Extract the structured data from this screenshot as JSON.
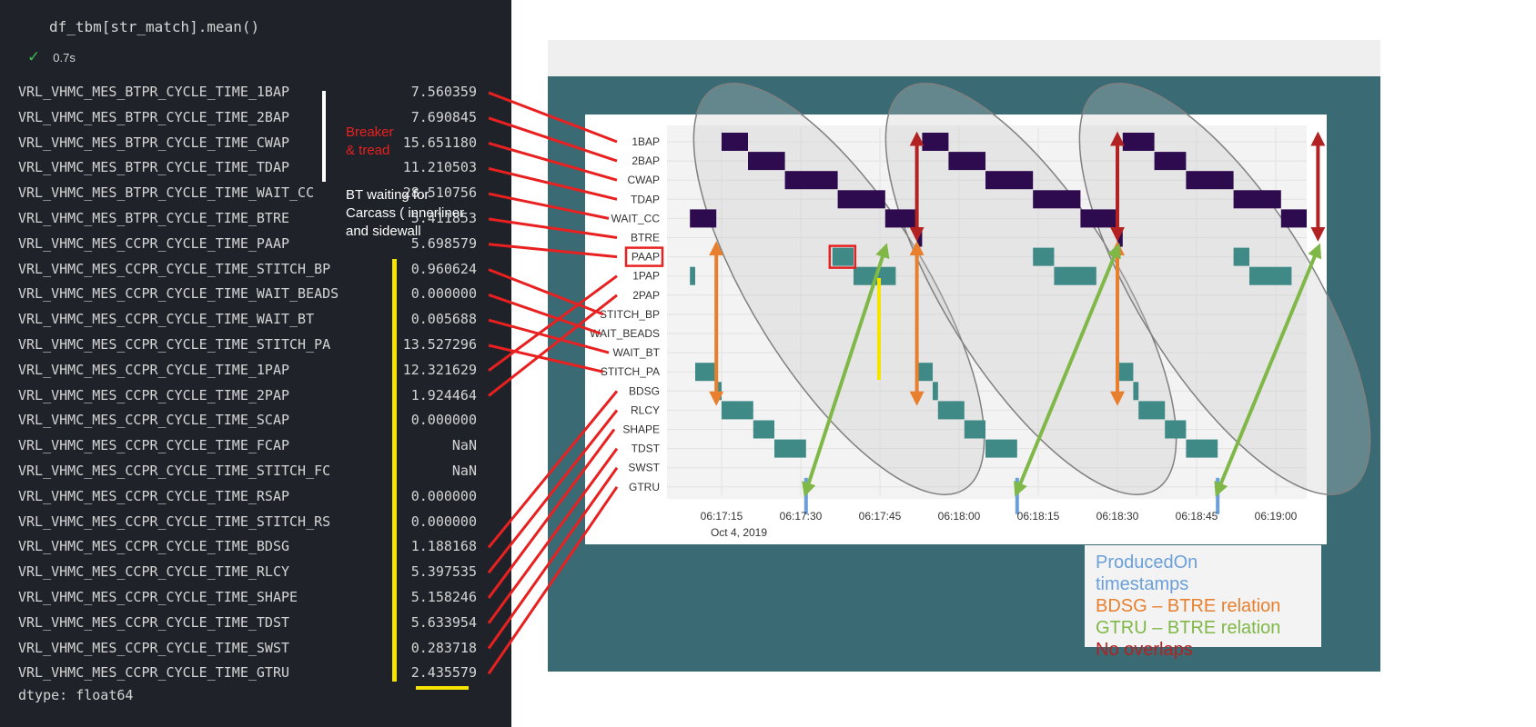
{
  "notebook": {
    "code": "df_tbm[str_match].mean()",
    "exec_time": "0.7s",
    "dtype": "dtype: float64",
    "rows": [
      {
        "name": "VRL_VHMC_MES_BTPR_CYCLE_TIME_1BAP",
        "value": "7.560359"
      },
      {
        "name": "VRL_VHMC_MES_BTPR_CYCLE_TIME_2BAP",
        "value": "7.690845"
      },
      {
        "name": "VRL_VHMC_MES_BTPR_CYCLE_TIME_CWAP",
        "value": "15.651180"
      },
      {
        "name": "VRL_VHMC_MES_BTPR_CYCLE_TIME_TDAP",
        "value": "11.210503"
      },
      {
        "name": "VRL_VHMC_MES_BTPR_CYCLE_TIME_WAIT_CC",
        "value": "28.510756"
      },
      {
        "name": "VRL_VHMC_MES_BTPR_CYCLE_TIME_BTRE",
        "value": "5.411853"
      },
      {
        "name": "VRL_VHMC_MES_CCPR_CYCLE_TIME_PAAP",
        "value": "5.698579"
      },
      {
        "name": "VRL_VHMC_MES_CCPR_CYCLE_TIME_STITCH_BP",
        "value": "0.960624"
      },
      {
        "name": "VRL_VHMC_MES_CCPR_CYCLE_TIME_WAIT_BEADS",
        "value": "0.000000"
      },
      {
        "name": "VRL_VHMC_MES_CCPR_CYCLE_TIME_WAIT_BT",
        "value": "0.005688"
      },
      {
        "name": "VRL_VHMC_MES_CCPR_CYCLE_TIME_STITCH_PA",
        "value": "13.527296"
      },
      {
        "name": "VRL_VHMC_MES_CCPR_CYCLE_TIME_1PAP",
        "value": "12.321629"
      },
      {
        "name": "VRL_VHMC_MES_CCPR_CYCLE_TIME_2PAP",
        "value": "1.924464"
      },
      {
        "name": "VRL_VHMC_MES_CCPR_CYCLE_TIME_SCAP",
        "value": "0.000000"
      },
      {
        "name": "VRL_VHMC_MES_CCPR_CYCLE_TIME_FCAP",
        "value": "NaN"
      },
      {
        "name": "VRL_VHMC_MES_CCPR_CYCLE_TIME_STITCH_FC",
        "value": "NaN"
      },
      {
        "name": "VRL_VHMC_MES_CCPR_CYCLE_TIME_RSAP",
        "value": "0.000000"
      },
      {
        "name": "VRL_VHMC_MES_CCPR_CYCLE_TIME_STITCH_RS",
        "value": "0.000000"
      },
      {
        "name": "VRL_VHMC_MES_CCPR_CYCLE_TIME_BDSG",
        "value": "1.188168"
      },
      {
        "name": "VRL_VHMC_MES_CCPR_CYCLE_TIME_RLCY",
        "value": "5.397535"
      },
      {
        "name": "VRL_VHMC_MES_CCPR_CYCLE_TIME_SHAPE",
        "value": "5.158246"
      },
      {
        "name": "VRL_VHMC_MES_CCPR_CYCLE_TIME_TDST",
        "value": "5.633954"
      },
      {
        "name": "VRL_VHMC_MES_CCPR_CYCLE_TIME_SWST",
        "value": "0.283718"
      },
      {
        "name": "VRL_VHMC_MES_CCPR_CYCLE_TIME_GTRU",
        "value": "2.435579"
      }
    ]
  },
  "annotations": {
    "breaker_line1": "Breaker",
    "breaker_line2": "& tread",
    "bt_line1": "BT waiting for",
    "bt_line2": "Carcass ( innerliner",
    "bt_line3": "and sidewall"
  },
  "legend": {
    "produced_on_1": "ProducedOn",
    "produced_on_2": "timestamps",
    "bdsg": "BDSG – BTRE relation",
    "gtru": "GTRU – BTRE relation",
    "no_overlap": "No overlaps"
  },
  "colors": {
    "dark_purple": "#2e0a4e",
    "teal": "#3f8a86",
    "produced_on": "#6a9fd8",
    "bdsg": "#e87f2e",
    "gtru": "#7fb847",
    "red": "#b22222",
    "connector_red": "#e82020",
    "yellow": "#f5e400",
    "frame": "#3a6b75"
  },
  "chart_data": {
    "type": "gantt",
    "categories": [
      "1BAP",
      "2BAP",
      "CWAP",
      "TDAP",
      "WAIT_CC",
      "BTRE",
      "PAAP",
      "1PAP",
      "2PAP",
      "STITCH_BP",
      "WAIT_BEADS",
      "WAIT_BT",
      "STITCH_PA",
      "BDSG",
      "RLCY",
      "SHAPE",
      "TDST",
      "SWST",
      "GTRU"
    ],
    "x_ticks": [
      "06:17:15",
      "06:17:30",
      "06:17:45",
      "06:18:00",
      "06:18:15",
      "06:18:30",
      "06:18:45",
      "06:19:00"
    ],
    "x_date": "Oct 4, 2019",
    "xlim_seconds": [
      10,
      72
    ],
    "purple_rows": [
      "1BAP",
      "2BAP",
      "CWAP",
      "TDAP",
      "WAIT_CC",
      "BTRE"
    ],
    "bars": [
      {
        "row": "WAIT_CC",
        "start": 9,
        "end": 14
      },
      {
        "row": "1BAP",
        "start": 15,
        "end": 20
      },
      {
        "row": "2BAP",
        "start": 20,
        "end": 27
      },
      {
        "row": "CWAP",
        "start": 27,
        "end": 37
      },
      {
        "row": "TDAP",
        "start": 37,
        "end": 46
      },
      {
        "row": "WAIT_CC",
        "start": 46,
        "end": 52
      },
      {
        "row": "BTRE",
        "start": 52,
        "end": 53
      },
      {
        "row": "1BAP",
        "start": 53,
        "end": 58
      },
      {
        "row": "2BAP",
        "start": 58,
        "end": 65
      },
      {
        "row": "CWAP",
        "start": 65,
        "end": 74
      },
      {
        "row": "TDAP",
        "start": 74,
        "end": 83
      },
      {
        "row": "WAIT_CC",
        "start": 83,
        "end": 90
      },
      {
        "row": "BTRE",
        "start": 90,
        "end": 91
      },
      {
        "row": "1BAP",
        "start": 91,
        "end": 97
      },
      {
        "row": "2BAP",
        "start": 97,
        "end": 103
      },
      {
        "row": "CWAP",
        "start": 103,
        "end": 112
      },
      {
        "row": "TDAP",
        "start": 112,
        "end": 121
      },
      {
        "row": "WAIT_CC",
        "start": 121,
        "end": 128
      },
      {
        "row": "BTRE",
        "start": 128,
        "end": 129
      },
      {
        "row": "1BAP",
        "start": 130,
        "end": 134
      },
      {
        "row": "1PAP",
        "start": 9,
        "end": 10
      },
      {
        "row": "STITCH_PA",
        "start": 10,
        "end": 14
      },
      {
        "row": "BDSG",
        "start": 14,
        "end": 15
      },
      {
        "row": "RLCY",
        "start": 15,
        "end": 21
      },
      {
        "row": "SHAPE",
        "start": 21,
        "end": 25
      },
      {
        "row": "TDST",
        "start": 25,
        "end": 31
      },
      {
        "row": "PAAP",
        "start": 36,
        "end": 40
      },
      {
        "row": "1PAP",
        "start": 40,
        "end": 48
      },
      {
        "row": "STITCH_PA",
        "start": 52,
        "end": 55
      },
      {
        "row": "BDSG",
        "start": 55,
        "end": 56
      },
      {
        "row": "RLCY",
        "start": 56,
        "end": 61
      },
      {
        "row": "SHAPE",
        "start": 61,
        "end": 65
      },
      {
        "row": "TDST",
        "start": 65,
        "end": 71
      },
      {
        "row": "PAAP",
        "start": 74,
        "end": 78
      },
      {
        "row": "1PAP",
        "start": 78,
        "end": 86
      },
      {
        "row": "STITCH_PA",
        "start": 90,
        "end": 93
      },
      {
        "row": "BDSG",
        "start": 93,
        "end": 94
      },
      {
        "row": "RLCY",
        "start": 94,
        "end": 99
      },
      {
        "row": "SHAPE",
        "start": 99,
        "end": 103
      },
      {
        "row": "TDST",
        "start": 103,
        "end": 109
      },
      {
        "row": "PAAP",
        "start": 112,
        "end": 115
      },
      {
        "row": "1PAP",
        "start": 115,
        "end": 123
      },
      {
        "row": "STITCH_PA",
        "start": 128,
        "end": 132
      },
      {
        "row": "BDSG",
        "start": 132,
        "end": 133
      },
      {
        "row": "RLCY",
        "start": 133,
        "end": 135
      }
    ],
    "produced_on": [
      {
        "row": "GTRU",
        "t": 31
      },
      {
        "row": "GTRU",
        "t": 71
      },
      {
        "row": "GTRU",
        "t": 109
      }
    ]
  }
}
